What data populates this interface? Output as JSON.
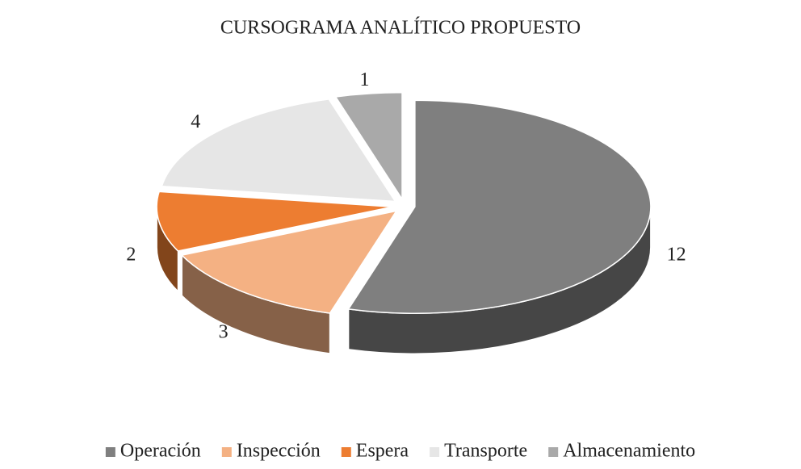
{
  "chart_data": {
    "type": "pie3d",
    "title": "CURSOGRAMA ANALÍTICO PROPUESTO",
    "categories": [
      "Operación",
      "Inspección",
      "Espera",
      "Transporte",
      "Almacenamiento"
    ],
    "values": [
      12,
      3,
      2,
      4,
      1
    ],
    "colors": [
      "#7f7f7f",
      "#f4b183",
      "#ed7d31",
      "#e6e6e6",
      "#a9a9a9"
    ],
    "legend": "bottom"
  }
}
